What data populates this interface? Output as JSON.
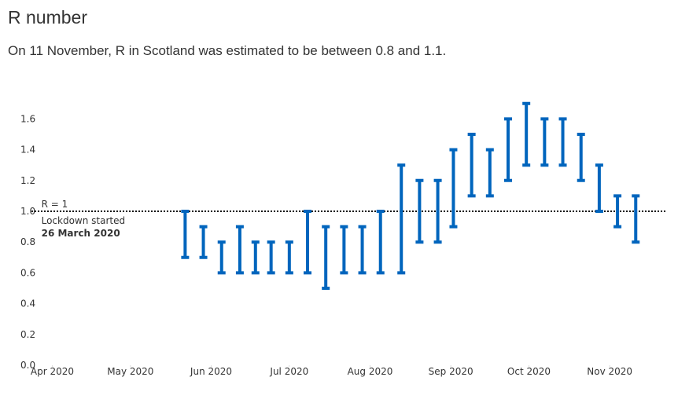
{
  "chart_data": {
    "type": "range",
    "title": "R number",
    "subtitle": "On 11 November, R in Scotland was estimated to be between 0.8 and 1.1.",
    "x": [
      "2020-05-22",
      "2020-05-29",
      "2020-06-05",
      "2020-06-12",
      "2020-06-18",
      "2020-06-24",
      "2020-07-01",
      "2020-07-08",
      "2020-07-15",
      "2020-07-22",
      "2020-07-29",
      "2020-08-05",
      "2020-08-13",
      "2020-08-20",
      "2020-08-27",
      "2020-09-02",
      "2020-09-09",
      "2020-09-16",
      "2020-09-23",
      "2020-09-30",
      "2020-10-07",
      "2020-10-14",
      "2020-10-21",
      "2020-10-28",
      "2020-11-04",
      "2020-11-11"
    ],
    "low": [
      0.7,
      0.7,
      0.6,
      0.6,
      0.6,
      0.6,
      0.6,
      0.6,
      0.5,
      0.6,
      0.6,
      0.6,
      0.6,
      0.8,
      0.8,
      0.9,
      1.1,
      1.1,
      1.2,
      1.3,
      1.3,
      1.3,
      1.2,
      1.0,
      0.9,
      0.8
    ],
    "high": [
      1.0,
      0.9,
      0.8,
      0.9,
      0.8,
      0.8,
      0.8,
      1.0,
      0.9,
      0.9,
      0.9,
      1.0,
      1.3,
      1.2,
      1.2,
      1.4,
      1.5,
      1.4,
      1.6,
      1.7,
      1.6,
      1.6,
      1.5,
      1.3,
      1.1,
      1.1
    ],
    "color": "#0065bd",
    "xlim": [
      "2020-03-24",
      "2020-11-23"
    ],
    "xticks": [
      {
        "value": "2020-04-01",
        "label": "Apr 2020"
      },
      {
        "value": "2020-05-01",
        "label": "May 2020"
      },
      {
        "value": "2020-06-01",
        "label": "Jun 2020"
      },
      {
        "value": "2020-07-01",
        "label": "Jul 2020"
      },
      {
        "value": "2020-08-01",
        "label": "Aug 2020"
      },
      {
        "value": "2020-09-01",
        "label": "Sep 2020"
      },
      {
        "value": "2020-10-01",
        "label": "Oct 2020"
      },
      {
        "value": "2020-11-01",
        "label": "Nov 2020"
      }
    ],
    "ylim": [
      0,
      1.75
    ],
    "yticks": [
      {
        "value": 0,
        "label": "0.0"
      },
      0.2,
      0.4,
      0.6,
      0.8,
      {
        "value": 1,
        "label": "1.0"
      },
      1.2,
      1.4,
      1.6
    ],
    "reference_line": {
      "value": 1,
      "label": "R = 1"
    },
    "event": {
      "x": "2020-03-26",
      "label": "Lockdown started",
      "date_label": "26 March 2020"
    }
  }
}
